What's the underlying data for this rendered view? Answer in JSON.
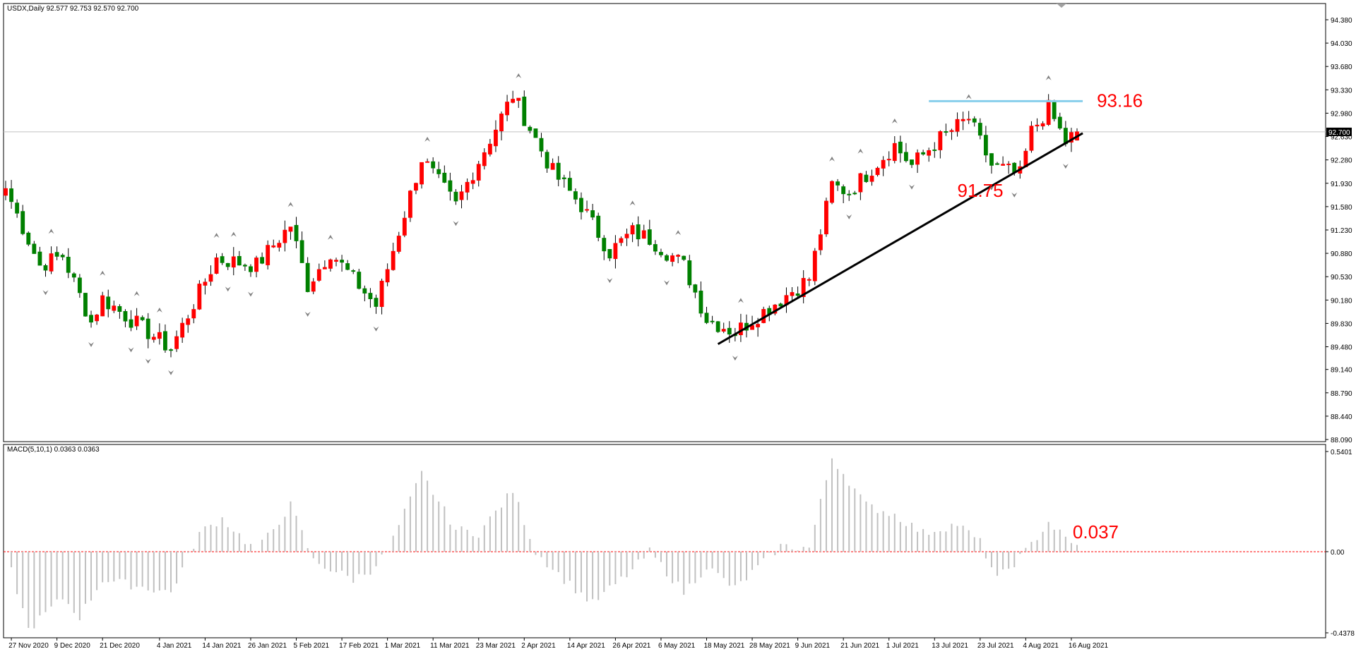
{
  "header": {
    "symbol_line": "USDX,Daily  92.577 92.753 92.570 92.700",
    "macd_line": "MACD(5,10,1) 0.0363 0.0363"
  },
  "colors": {
    "bull": "#ff0000",
    "bear": "#008000",
    "grid": "#c0c0c0",
    "trendline": "#000000",
    "resistance": "#87ceeb",
    "annotation": "#ff0000",
    "histogram": "#c0c0c0",
    "zero_line": "#ff0000",
    "fractal": "#808080"
  },
  "price_axis": {
    "labels": [
      "94.380",
      "94.030",
      "93.680",
      "93.330",
      "92.980",
      "92.630",
      "92.280",
      "91.930",
      "91.580",
      "91.230",
      "90.880",
      "90.530",
      "90.180",
      "89.830",
      "89.480",
      "89.140",
      "88.790",
      "88.440",
      "88.090"
    ],
    "current_price": "92.700"
  },
  "macd_axis": {
    "labels": [
      "0.5401",
      "0.00",
      "-0.4378"
    ]
  },
  "time_axis": {
    "labels": [
      "27 Nov 2020",
      "9 Dec 2020",
      "21 Dec 2020",
      "4 Jan 2021",
      "14 Jan 2021",
      "26 Jan 2021",
      "5 Feb 2021",
      "17 Feb 2021",
      "1 Mar 2021",
      "11 Mar 2021",
      "23 Mar 2021",
      "2 Apr 2021",
      "14 Apr 2021",
      "26 Apr 2021",
      "6 May 2021",
      "18 May 2021",
      "28 May 2021",
      "9 Jun 2021",
      "21 Jun 2021",
      "1 Jul 2021",
      "13 Jul 2021",
      "23 Jul 2021",
      "4 Aug 2021",
      "16 Aug 2021"
    ]
  },
  "annotations": {
    "resistance_label": "93.16",
    "support_label": "91.75",
    "macd_label": "0.037"
  },
  "chart_data": [
    {
      "type": "candlestick",
      "title": "USDX,Daily",
      "ohlc_last": {
        "open": 92.577,
        "high": 92.753,
        "low": 92.57,
        "close": 92.7
      },
      "ylim": [
        88.09,
        94.38
      ],
      "anchors": [
        {
          "date": "26 Nov 2020",
          "close": 91.85
        },
        {
          "date": "4 Dec 2020",
          "close": 90.7
        },
        {
          "date": "10 Dec 2020",
          "close": 90.85
        },
        {
          "date": "17 Dec 2020",
          "close": 89.85
        },
        {
          "date": "21 Dec 2020",
          "close": 90.2
        },
        {
          "date": "6 Jan 2021",
          "close": 89.45
        },
        {
          "date": "18 Jan 2021",
          "close": 90.8
        },
        {
          "date": "27 Jan 2021",
          "close": 90.7
        },
        {
          "date": "4 Feb 2021",
          "close": 91.3
        },
        {
          "date": "9 Feb 2021",
          "close": 90.4
        },
        {
          "date": "15 Feb 2021",
          "close": 90.9
        },
        {
          "date": "25 Feb 2021",
          "close": 90.1
        },
        {
          "date": "9 Mar 2021",
          "close": 92.3
        },
        {
          "date": "17 Mar 2021",
          "close": 91.6
        },
        {
          "date": "31 Mar 2021",
          "close": 93.25
        },
        {
          "date": "9 Apr 2021",
          "close": 92.1
        },
        {
          "date": "16 Apr 2021",
          "close": 91.6
        },
        {
          "date": "23 Apr 2021",
          "close": 90.9
        },
        {
          "date": "29 Apr 2021",
          "close": 91.2
        },
        {
          "date": "4 May 2021",
          "close": 91.1
        },
        {
          "date": "12 May 2021",
          "close": 90.7
        },
        {
          "date": "18 May 2021",
          "close": 89.9
        },
        {
          "date": "25 May 2021",
          "close": 89.7
        },
        {
          "date": "11 Jun 2021",
          "close": 90.5
        },
        {
          "date": "17 Jun 2021",
          "close": 91.9
        },
        {
          "date": "22 Jun 2021",
          "close": 91.8
        },
        {
          "date": "2 Jul 2021",
          "close": 92.5
        },
        {
          "date": "7 Jul 2021",
          "close": 92.2
        },
        {
          "date": "14 Jul 2021",
          "close": 92.6
        },
        {
          "date": "21 Jul 2021",
          "close": 92.9
        },
        {
          "date": "27 Jul 2021",
          "close": 92.2
        },
        {
          "date": "3 Aug 2021",
          "close": 92.05
        },
        {
          "date": "5 Aug 2021",
          "close": 92.7
        },
        {
          "date": "10 Aug 2021",
          "close": 93.05
        },
        {
          "date": "13 Aug 2021",
          "close": 92.55
        },
        {
          "date": "17 Aug 2021",
          "close": 92.7
        }
      ],
      "horizontal_line": 93.16,
      "support_level": 91.75,
      "trendline": [
        {
          "date": "20 May 2021",
          "value": 89.52
        },
        {
          "date": "24 Aug 2021",
          "value": 92.68
        }
      ]
    },
    {
      "type": "bar",
      "title": "MACD(5,10,1)",
      "last_value": 0.0363,
      "ylim": [
        -0.4378,
        0.5401
      ],
      "anchors": [
        {
          "date": "26 Nov 2020",
          "value": 0.0
        },
        {
          "date": "2 Dec 2020",
          "value": -0.42
        },
        {
          "date": "10 Dec 2020",
          "value": -0.25
        },
        {
          "date": "15 Dec 2020",
          "value": -0.35
        },
        {
          "date": "21 Dec 2020",
          "value": -0.15
        },
        {
          "date": "6 Jan 2021",
          "value": -0.22
        },
        {
          "date": "13 Jan 2021",
          "value": 0.1
        },
        {
          "date": "19 Jan 2021",
          "value": 0.18
        },
        {
          "date": "27 Jan 2021",
          "value": 0.0
        },
        {
          "date": "4 Feb 2021",
          "value": 0.25
        },
        {
          "date": "10 Feb 2021",
          "value": -0.05
        },
        {
          "date": "19 Feb 2021",
          "value": -0.15
        },
        {
          "date": "24 Feb 2021",
          "value": -0.1
        },
        {
          "date": "1 Mar 2021",
          "value": 0.0
        },
        {
          "date": "9 Mar 2021",
          "value": 0.42
        },
        {
          "date": "17 Mar 2021",
          "value": 0.12
        },
        {
          "date": "23 Mar 2021",
          "value": 0.1
        },
        {
          "date": "31 Mar 2021",
          "value": 0.33
        },
        {
          "date": "6 Apr 2021",
          "value": 0.0
        },
        {
          "date": "13 Apr 2021",
          "value": -0.15
        },
        {
          "date": "20 Apr 2021",
          "value": -0.28
        },
        {
          "date": "29 Apr 2021",
          "value": -0.1
        },
        {
          "date": "4 May 2021",
          "value": 0.0
        },
        {
          "date": "12 May 2021",
          "value": -0.22
        },
        {
          "date": "18 May 2021",
          "value": -0.08
        },
        {
          "date": "25 May 2021",
          "value": -0.2
        },
        {
          "date": "4 Jun 2021",
          "value": 0.03
        },
        {
          "date": "11 Jun 2021",
          "value": 0.02
        },
        {
          "date": "17 Jun 2021",
          "value": 0.51
        },
        {
          "date": "25 Jun 2021",
          "value": 0.25
        },
        {
          "date": "2 Jul 2021",
          "value": 0.2
        },
        {
          "date": "9 Jul 2021",
          "value": 0.1
        },
        {
          "date": "19 Jul 2021",
          "value": 0.15
        },
        {
          "date": "23 Jul 2021",
          "value": 0.05
        },
        {
          "date": "28 Jul 2021",
          "value": -0.15
        },
        {
          "date": "4 Aug 2021",
          "value": 0.0
        },
        {
          "date": "10 Aug 2021",
          "value": 0.16
        },
        {
          "date": "16 Aug 2021",
          "value": 0.04
        }
      ]
    }
  ]
}
